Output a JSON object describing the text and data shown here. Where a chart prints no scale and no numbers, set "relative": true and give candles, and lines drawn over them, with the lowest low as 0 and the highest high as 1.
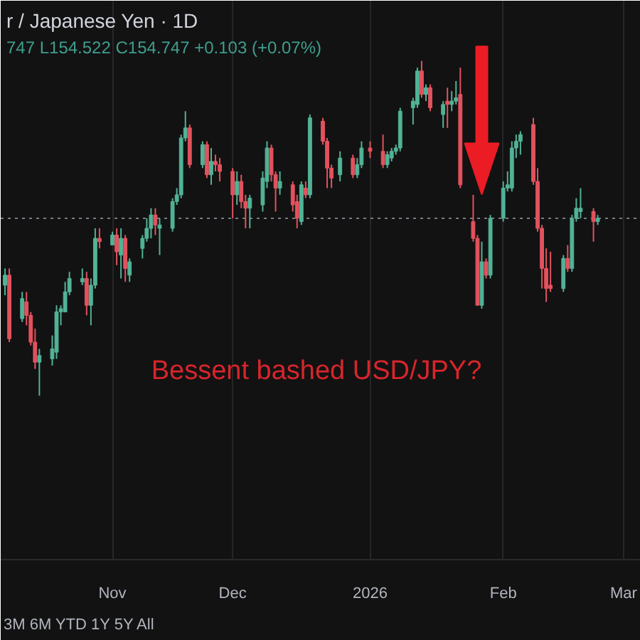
{
  "chart_data": {
    "type": "candlestick",
    "title": "r / Japanese Yen · 1D",
    "subtitle": "747 L154.522 C154.747 +0.103 (+0.07%)",
    "annotations": [
      "Bessent bashed USD/JPY?",
      "3M 6M YTD 1Y 5Y All"
    ],
    "relative": true,
    "tick_labels": "x",
    "grid": "x",
    "xlim": [
      "2025-10-08",
      "2026-03-06"
    ],
    "xticks": [
      {
        "value": "2025-11-03",
        "label": "Nov"
      },
      {
        "value": "2025-12-01",
        "label": "Dec"
      },
      {
        "value": "2026-01-02",
        "label": "2026"
      },
      {
        "value": "2026-02-02",
        "label": "Feb"
      },
      {
        "value": "2026-03-02",
        "label": "Mar"
      }
    ],
    "ref_lines": [
      {
        "axis": "y",
        "value": 0.53,
        "color": "#787b86",
        "line_style": "dotted"
      }
    ],
    "x": [
      "2025-10-09",
      "2025-10-10",
      "2025-10-13",
      "2025-10-14",
      "2025-10-15",
      "2025-10-16",
      "2025-10-17",
      "2025-10-20",
      "2025-10-21",
      "2025-10-22",
      "2025-10-23",
      "2025-10-24",
      "2025-10-27",
      "2025-10-28",
      "2025-10-29",
      "2025-10-30",
      "2025-10-31",
      "2025-11-03",
      "2025-11-04",
      "2025-11-05",
      "2025-11-06",
      "2025-11-07",
      "2025-11-10",
      "2025-11-11",
      "2025-11-12",
      "2025-11-13",
      "2025-11-14",
      "2025-11-17",
      "2025-11-18",
      "2025-11-19",
      "2025-11-20",
      "2025-11-21",
      "2025-11-24",
      "2025-11-25",
      "2025-11-26",
      "2025-11-27",
      "2025-11-28",
      "2025-12-01",
      "2025-12-02",
      "2025-12-03",
      "2025-12-04",
      "2025-12-05",
      "2025-12-08",
      "2025-12-09",
      "2025-12-10",
      "2025-12-11",
      "2025-12-12",
      "2025-12-15",
      "2025-12-16",
      "2025-12-17",
      "2025-12-18",
      "2025-12-19",
      "2025-12-22",
      "2025-12-23",
      "2025-12-24",
      "2025-12-26",
      "2025-12-29",
      "2025-12-30",
      "2025-12-31",
      "2026-01-02",
      "2026-01-05",
      "2026-01-06",
      "2026-01-07",
      "2026-01-08",
      "2026-01-09",
      "2026-01-12",
      "2026-01-13",
      "2026-01-14",
      "2026-01-15",
      "2026-01-16",
      "2026-01-19",
      "2026-01-20",
      "2026-01-21",
      "2026-01-22",
      "2026-01-23",
      "2026-01-26",
      "2026-01-27",
      "2026-01-28",
      "2026-01-29",
      "2026-01-30",
      "2026-02-02",
      "2026-02-03",
      "2026-02-04",
      "2026-02-05",
      "2026-02-06",
      "2026-02-09",
      "2026-02-10",
      "2026-02-11",
      "2026-02-12",
      "2026-02-13",
      "2026-02-16",
      "2026-02-17",
      "2026-02-18",
      "2026-02-19",
      "2026-02-20",
      "2026-02-23",
      "2026-02-24"
    ],
    "ohlc": [
      [
        0.33,
        0.38,
        0.3,
        0.36
      ],
      [
        0.36,
        0.38,
        0.16,
        0.17
      ],
      [
        0.23,
        0.31,
        0.22,
        0.29
      ],
      [
        0.28,
        0.31,
        0.21,
        0.24
      ],
      [
        0.24,
        0.25,
        0.15,
        0.16
      ],
      [
        0.16,
        0.2,
        0.08,
        0.1
      ],
      [
        0.1,
        0.14,
        0.0,
        0.12
      ],
      [
        0.11,
        0.18,
        0.09,
        0.14
      ],
      [
        0.13,
        0.27,
        0.11,
        0.25
      ],
      [
        0.25,
        0.27,
        0.21,
        0.26
      ],
      [
        0.25,
        0.34,
        0.25,
        0.31
      ],
      [
        0.31,
        0.37,
        0.3,
        0.35
      ],
      [
        0.34,
        0.38,
        0.33,
        0.35
      ],
      [
        0.35,
        0.37,
        0.24,
        0.27
      ],
      [
        0.27,
        0.35,
        0.21,
        0.33
      ],
      [
        0.33,
        0.5,
        0.32,
        0.47
      ],
      [
        0.47,
        0.5,
        0.44,
        0.46
      ],
      [
        0.45,
        0.49,
        0.45,
        0.48
      ],
      [
        0.48,
        0.5,
        0.39,
        0.43
      ],
      [
        0.42,
        0.5,
        0.35,
        0.47
      ],
      [
        0.47,
        0.48,
        0.34,
        0.38
      ],
      [
        0.36,
        0.41,
        0.34,
        0.4
      ],
      [
        0.44,
        0.48,
        0.41,
        0.47
      ],
      [
        0.47,
        0.53,
        0.46,
        0.5
      ],
      [
        0.5,
        0.56,
        0.47,
        0.54
      ],
      [
        0.54,
        0.56,
        0.48,
        0.51
      ],
      [
        0.5,
        0.53,
        0.42,
        0.51
      ],
      [
        0.5,
        0.59,
        0.49,
        0.58
      ],
      [
        0.58,
        0.62,
        0.57,
        0.6
      ],
      [
        0.6,
        0.78,
        0.59,
        0.77
      ],
      [
        0.77,
        0.85,
        0.76,
        0.8
      ],
      [
        0.8,
        0.81,
        0.68,
        0.69
      ],
      [
        0.69,
        0.76,
        0.68,
        0.75
      ],
      [
        0.75,
        0.76,
        0.65,
        0.66
      ],
      [
        0.66,
        0.74,
        0.63,
        0.7
      ],
      [
        0.7,
        0.72,
        0.67,
        0.69
      ],
      [
        0.69,
        0.71,
        0.64,
        0.67
      ],
      [
        0.67,
        0.68,
        0.53,
        0.6
      ],
      [
        0.6,
        0.67,
        0.57,
        0.64
      ],
      [
        0.64,
        0.66,
        0.56,
        0.58
      ],
      [
        0.58,
        0.6,
        0.5,
        0.56
      ],
      [
        0.56,
        0.6,
        0.5,
        0.59
      ],
      [
        0.57,
        0.67,
        0.55,
        0.65
      ],
      [
        0.64,
        0.76,
        0.62,
        0.74
      ],
      [
        0.74,
        0.75,
        0.64,
        0.66
      ],
      [
        0.66,
        0.67,
        0.55,
        0.62
      ],
      [
        0.62,
        0.67,
        0.6,
        0.64
      ],
      [
        0.63,
        0.64,
        0.55,
        0.57
      ],
      [
        0.58,
        0.6,
        0.5,
        0.53
      ],
      [
        0.52,
        0.64,
        0.51,
        0.63
      ],
      [
        0.62,
        0.64,
        0.59,
        0.6
      ],
      [
        0.6,
        0.84,
        0.59,
        0.83
      ],
      [
        0.82,
        0.83,
        0.75,
        0.76
      ],
      [
        0.76,
        0.77,
        0.62,
        0.68
      ],
      [
        0.68,
        0.69,
        0.62,
        0.65
      ],
      [
        0.66,
        0.73,
        0.64,
        0.71
      ],
      [
        0.71,
        0.72,
        0.65,
        0.66
      ],
      [
        0.66,
        0.71,
        0.65,
        0.69
      ],
      [
        0.69,
        0.76,
        0.68,
        0.74
      ],
      [
        0.74,
        0.76,
        0.71,
        0.73
      ],
      [
        0.73,
        0.78,
        0.68,
        0.69
      ],
      [
        0.69,
        0.73,
        0.68,
        0.72
      ],
      [
        0.71,
        0.74,
        0.7,
        0.73
      ],
      [
        0.73,
        0.75,
        0.72,
        0.74
      ],
      [
        0.74,
        0.86,
        0.73,
        0.85
      ],
      [
        0.86,
        0.89,
        0.81,
        0.88
      ],
      [
        0.87,
        0.98,
        0.86,
        0.97
      ],
      [
        0.97,
        1.0,
        0.89,
        0.9
      ],
      [
        0.9,
        0.93,
        0.88,
        0.92
      ],
      [
        0.92,
        0.93,
        0.85,
        0.86
      ],
      [
        0.84,
        0.88,
        0.8,
        0.87
      ],
      [
        0.88,
        0.92,
        0.8,
        0.87
      ],
      [
        0.87,
        0.91,
        0.85,
        0.88
      ],
      [
        0.88,
        0.94,
        0.87,
        0.89
      ],
      [
        0.9,
        0.98,
        0.62,
        0.63
      ],
      [
        0.52,
        0.6,
        0.46,
        0.47
      ],
      [
        0.47,
        0.48,
        0.27,
        0.27
      ],
      [
        0.27,
        0.46,
        0.26,
        0.4
      ],
      [
        0.4,
        0.41,
        0.35,
        0.36
      ],
      [
        0.36,
        0.54,
        0.35,
        0.53
      ],
      [
        0.53,
        0.64,
        0.52,
        0.62
      ],
      [
        0.62,
        0.67,
        0.61,
        0.63
      ],
      [
        0.62,
        0.76,
        0.61,
        0.74
      ],
      [
        0.74,
        0.78,
        0.71,
        0.76
      ],
      [
        0.76,
        0.79,
        0.72,
        0.78
      ],
      [
        0.81,
        0.83,
        0.63,
        0.64
      ],
      [
        0.64,
        0.68,
        0.49,
        0.5
      ],
      [
        0.5,
        0.51,
        0.32,
        0.38
      ],
      [
        0.38,
        0.44,
        0.28,
        0.32
      ],
      [
        0.33,
        0.43,
        0.31,
        0.32
      ],
      [
        0.32,
        0.42,
        0.31,
        0.41
      ],
      [
        0.41,
        0.45,
        0.37,
        0.38
      ],
      [
        0.38,
        0.54,
        0.37,
        0.53
      ],
      [
        0.53,
        0.59,
        0.52,
        0.56
      ],
      [
        0.55,
        0.62,
        0.53,
        0.56
      ],
      [
        0.55,
        0.56,
        0.46,
        0.52
      ],
      [
        0.52,
        0.54,
        0.51,
        0.53
      ]
    ],
    "colors": [
      "#52b296",
      "#e2525e",
      "#52b296",
      "#e2525e",
      "#e2525e",
      "#e2525e",
      "#52b296",
      "#52b296",
      "#52b296",
      "#52b296",
      "#52b296",
      "#52b296",
      "#52b296",
      "#e2525e",
      "#52b296",
      "#52b296",
      "#e2525e",
      "#52b296",
      "#e2525e",
      "#52b296",
      "#e2525e",
      "#52b296",
      "#52b296",
      "#52b296",
      "#52b296",
      "#e2525e",
      "#52b296",
      "#52b296",
      "#52b296",
      "#52b296",
      "#52b296",
      "#e2525e",
      "#52b296",
      "#e2525e",
      "#52b296",
      "#e2525e",
      "#e2525e",
      "#e2525e",
      "#52b296",
      "#e2525e",
      "#e2525e",
      "#52b296",
      "#52b296",
      "#52b296",
      "#e2525e",
      "#e2525e",
      "#52b296",
      "#e2525e",
      "#e2525e",
      "#52b296",
      "#e2525e",
      "#52b296",
      "#e2525e",
      "#e2525e",
      "#e2525e",
      "#52b296",
      "#e2525e",
      "#52b296",
      "#52b296",
      "#e2525e",
      "#e2525e",
      "#52b296",
      "#52b296",
      "#52b296",
      "#52b296",
      "#52b296",
      "#52b296",
      "#e2525e",
      "#52b296",
      "#e2525e",
      "#52b296",
      "#e2525e",
      "#52b296",
      "#52b296",
      "#e2525e",
      "#e2525e",
      "#e2525e",
      "#52b296",
      "#e2525e",
      "#52b296",
      "#52b296",
      "#52b296",
      "#52b296",
      "#52b296",
      "#52b296",
      "#e2525e",
      "#e2525e",
      "#e2525e",
      "#e2525e",
      "#e2525e",
      "#52b296",
      "#e2525e",
      "#52b296",
      "#52b296",
      "#52b296",
      "#e2525e",
      "#52b296"
    ]
  }
}
